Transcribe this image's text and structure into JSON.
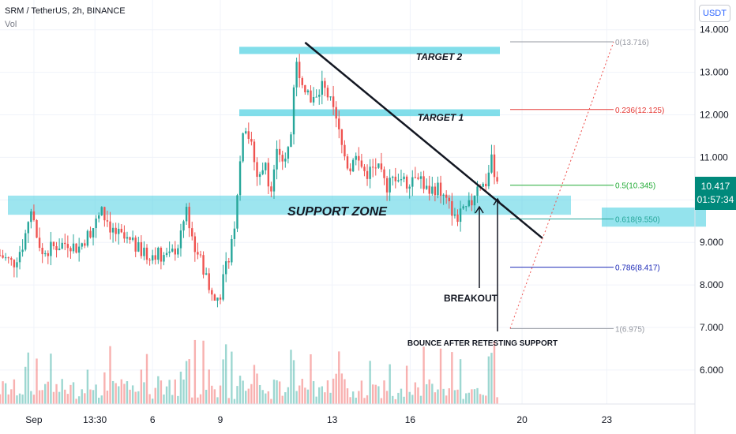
{
  "header": {
    "symbol_line": "SRM / TetherUS, 2h, BINANCE",
    "volume_label": "Vol"
  },
  "toolbar": {
    "currency_button": "USDT"
  },
  "current_price": {
    "value": "10.417",
    "countdown": "01:57:34",
    "color": "#00897b"
  },
  "chart_data": {
    "type": "candlestick",
    "symbol": "SRM / TetherUS",
    "interval": "2h",
    "exchange": "BINANCE",
    "y_axis": {
      "ticks": [
        6.0,
        7.0,
        8.0,
        9.0,
        10.0,
        11.0,
        12.0,
        13.0,
        14.0
      ],
      "tick_labels": [
        "6.000",
        "7.000",
        "8.000",
        "9.000",
        "10.000",
        "11.000",
        "12.000",
        "13.000",
        "14.000"
      ],
      "range": [
        5.2,
        14.7
      ]
    },
    "x_axis": {
      "tick_labels": [
        "Sep",
        "13:30",
        "6",
        "9",
        "13",
        "16",
        "20",
        "23"
      ],
      "tick_positions_days": [
        0.0,
        1.8,
        3.5,
        5.5,
        8.8,
        11.1,
        14.4,
        16.9
      ],
      "range_days": [
        -1.0,
        19.5
      ]
    },
    "price_path": [
      [
        -1.0,
        8.7
      ],
      [
        -0.6,
        8.5
      ],
      [
        -0.3,
        9.0
      ],
      [
        -0.1,
        9.8
      ],
      [
        0.2,
        8.7
      ],
      [
        0.6,
        8.9
      ],
      [
        1.0,
        9.0
      ],
      [
        1.3,
        8.85
      ],
      [
        1.7,
        9.3
      ],
      [
        2.0,
        9.7
      ],
      [
        2.3,
        9.3
      ],
      [
        2.7,
        9.05
      ],
      [
        3.0,
        8.9
      ],
      [
        3.3,
        8.7
      ],
      [
        3.6,
        8.75
      ],
      [
        4.0,
        8.65
      ],
      [
        4.3,
        9.0
      ],
      [
        4.5,
        9.8
      ],
      [
        4.7,
        9.0
      ],
      [
        4.9,
        8.6
      ],
      [
        5.1,
        8.2
      ],
      [
        5.3,
        7.6
      ],
      [
        5.5,
        7.8
      ],
      [
        5.7,
        8.5
      ],
      [
        5.9,
        9.3
      ],
      [
        6.0,
        10.2
      ],
      [
        6.2,
        11.9
      ],
      [
        6.4,
        11.3
      ],
      [
        6.6,
        10.5
      ],
      [
        6.8,
        10.9
      ],
      [
        7.0,
        10.2
      ],
      [
        7.2,
        11.2
      ],
      [
        7.4,
        10.8
      ],
      [
        7.6,
        11.6
      ],
      [
        7.7,
        13.3
      ],
      [
        7.9,
        12.9
      ],
      [
        8.1,
        12.5
      ],
      [
        8.3,
        12.3
      ],
      [
        8.5,
        12.7
      ],
      [
        8.7,
        12.4
      ],
      [
        8.9,
        11.9
      ],
      [
        9.1,
        11.2
      ],
      [
        9.3,
        10.7
      ],
      [
        9.5,
        11.0
      ],
      [
        9.8,
        10.6
      ],
      [
        10.1,
        10.8
      ],
      [
        10.4,
        10.3
      ],
      [
        10.7,
        10.6
      ],
      [
        11.0,
        10.4
      ],
      [
        11.3,
        10.7
      ],
      [
        11.6,
        10.2
      ],
      [
        11.9,
        10.3
      ],
      [
        12.2,
        9.9
      ],
      [
        12.5,
        9.6
      ],
      [
        12.7,
        9.7
      ],
      [
        12.9,
        9.9
      ],
      [
        13.1,
        10.45
      ],
      [
        13.3,
        10.3
      ],
      [
        13.5,
        10.9
      ],
      [
        13.7,
        10.4
      ]
    ],
    "volume_max_fraction_of_panel": 1.0,
    "support_zone": {
      "label": "SUPPORT ZONE",
      "low": 9.65,
      "high": 10.1
    },
    "target_zones": [
      {
        "label": "TARGET 2",
        "low": 13.43,
        "high": 13.6
      },
      {
        "label": "TARGET 1",
        "low": 11.97,
        "high": 12.13
      }
    ],
    "retest_zone": {
      "low": 9.37,
      "high": 9.82
    },
    "fibonacci": [
      {
        "label": "0(13.716)",
        "price": 13.716,
        "color": "#9598a1"
      },
      {
        "label": "0.236(12.125)",
        "price": 12.125,
        "color": "#e53935"
      },
      {
        "label": "0.5(10.345)",
        "price": 10.345,
        "color": "#22ab36"
      },
      {
        "label": "0.618(9.550)",
        "price": 9.55,
        "color": "#26a69a"
      },
      {
        "label": "0.786(8.417)",
        "price": 8.417,
        "color": "#1e2bb8"
      },
      {
        "label": "1(6.975)",
        "price": 6.975,
        "color": "#9598a1"
      }
    ],
    "trendline": {
      "from": [
        8.0,
        13.7
      ],
      "to": [
        15.0,
        9.1
      ]
    },
    "annotations": [
      "BREAKOUT",
      "BOUNCE AFTER RETESTING SUPPORT"
    ],
    "colors": {
      "up": "#26a69a",
      "down": "#ef5350",
      "zone": "#4dd0e1"
    }
  }
}
